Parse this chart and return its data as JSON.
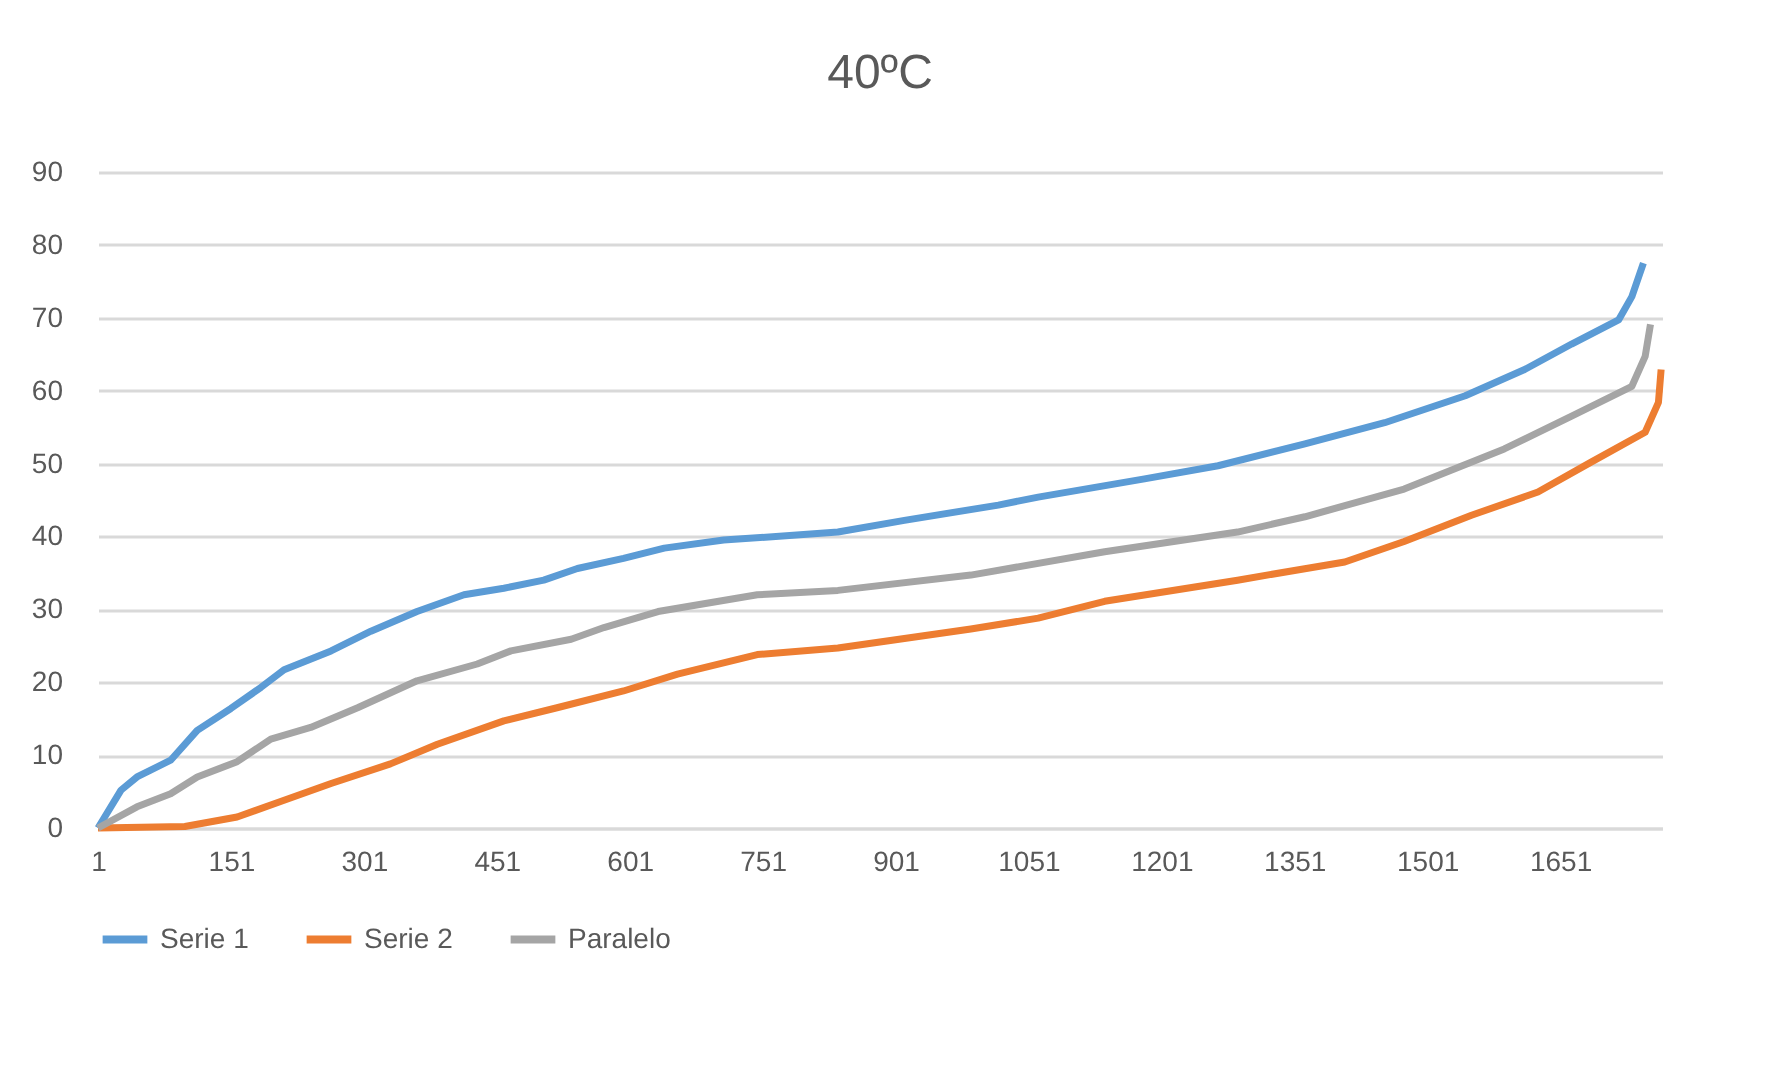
{
  "chart_data": {
    "type": "line",
    "title": "40ºC",
    "xlim": [
      1,
      1766
    ],
    "xticks": [
      1,
      151,
      301,
      451,
      601,
      751,
      901,
      1051,
      1201,
      1351,
      1501,
      1651
    ],
    "ylim": [
      0,
      90
    ],
    "yticks": [
      0,
      10,
      20,
      30,
      40,
      50,
      60,
      70,
      80,
      90
    ],
    "grid": "y",
    "legend": "bottom",
    "marker": "none",
    "line_style": "solid",
    "series": [
      {
        "name": "Serie 1",
        "color": "#5b9bd5",
        "x": [
          1,
          27,
          45,
          83,
          113,
          151,
          185,
          211,
          264,
          309,
          361,
          414,
          459,
          504,
          542,
          594,
          640,
          707,
          836,
          911,
          1017,
          1062,
          1182,
          1265,
          1363,
          1453,
          1544,
          1611,
          1664,
          1717,
          1732,
          1745
        ],
        "values": [
          0,
          5.2,
          7,
          9.3,
          13.4,
          16.4,
          19.3,
          21.7,
          24.3,
          27,
          29.7,
          32,
          32.9,
          34,
          35.6,
          37,
          38.4,
          39.5,
          40.6,
          42.2,
          44.3,
          45.4,
          47.9,
          49.7,
          52.7,
          55.6,
          59.3,
          62.9,
          66.4,
          69.7,
          72.9,
          77.5
        ]
      },
      {
        "name": "Serie 2",
        "color": "#ed7d31",
        "x": [
          1,
          99,
          158,
          211,
          264,
          331,
          384,
          459,
          519,
          594,
          655,
          745,
          836,
          986,
          1062,
          1137,
          1287,
          1408,
          1475,
          1551,
          1626,
          1686,
          1747,
          1762,
          1765
        ],
        "values": [
          0,
          0.2,
          1.5,
          3.8,
          6.1,
          8.8,
          11.5,
          14.7,
          16.5,
          18.8,
          21.1,
          23.8,
          24.7,
          27.3,
          28.8,
          31.1,
          34,
          36.5,
          39.3,
          42.9,
          46.1,
          50.2,
          54.3,
          58.4,
          62.9
        ]
      },
      {
        "name": "Paralelo",
        "color": "#a5a5a5",
        "x": [
          1,
          45,
          83,
          113,
          158,
          196,
          241,
          294,
          361,
          429,
          467,
          535,
          572,
          633,
          745,
          836,
          986,
          1137,
          1287,
          1363,
          1475,
          1588,
          1664,
          1732,
          1747,
          1753
        ],
        "values": [
          0,
          2.9,
          4.7,
          7,
          9.1,
          12.2,
          13.8,
          16.5,
          20.2,
          22.5,
          24.3,
          25.9,
          27.5,
          29.7,
          32,
          32.6,
          34.7,
          37.9,
          40.6,
          42.7,
          46.5,
          52,
          56.5,
          60.6,
          64.7,
          69.1
        ]
      }
    ]
  }
}
